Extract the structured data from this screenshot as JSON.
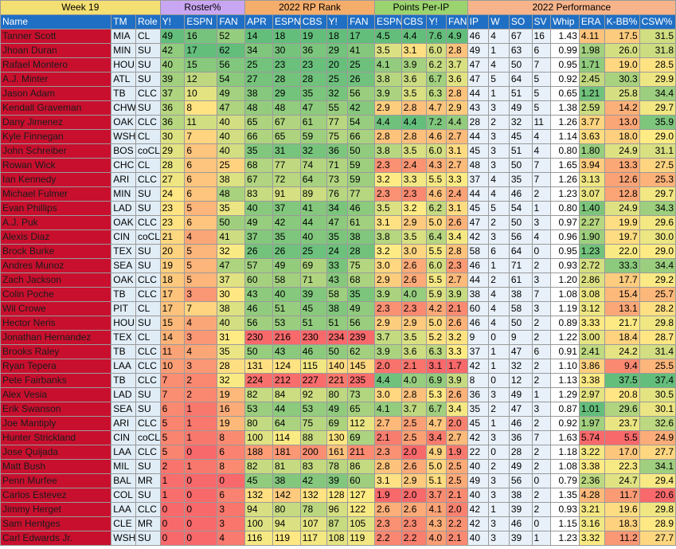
{
  "groups": {
    "week": "Week 19",
    "roster": "Roster%",
    "rp_rank": "2022 RP Rank",
    "points": "Points Per-IP",
    "performance": "2022 Performance"
  },
  "columns": [
    "Name",
    "TM",
    "Role",
    "Y!",
    "ESPN",
    "FAN",
    "APR",
    "ESPN",
    "CBS",
    "Y!",
    "FAN",
    "ESPN",
    "CBS",
    "Y!",
    "FAN",
    "IP",
    "W",
    "SO",
    "SV",
    "Whip",
    "ERA",
    "K-BB%",
    "CSW%"
  ],
  "rows": [
    {
      "name": "Tanner Scott",
      "tm": "MIA",
      "role": "CL",
      "ry": "49",
      "re": "16",
      "rf": "52",
      "apr": "14",
      "ke": "18",
      "kc": "19",
      "ky": "18",
      "kf": "17",
      "pe": "4.5",
      "pc": "4.4",
      "py": "7.6",
      "pf": "4.9",
      "ip": "46",
      "w": "4",
      "so": "67",
      "sv": "16",
      "whip": "1.43",
      "era": "4.11",
      "kbb": "17.5",
      "csw": "31.5"
    },
    {
      "name": "Jhoan Duran",
      "tm": "MIN",
      "role": "SU",
      "ry": "42",
      "re": "17",
      "rf": "62",
      "apr": "34",
      "ke": "30",
      "kc": "36",
      "ky": "29",
      "kf": "41",
      "pe": "3.5",
      "pc": "3.1",
      "py": "6.0",
      "pf": "2.8",
      "ip": "49",
      "w": "1",
      "so": "63",
      "sv": "6",
      "whip": "0.99",
      "era": "1.98",
      "kbb": "26.0",
      "csw": "31.8"
    },
    {
      "name": "Rafael Montero",
      "tm": "HOU",
      "role": "SU",
      "ry": "40",
      "re": "15",
      "rf": "56",
      "apr": "25",
      "ke": "23",
      "kc": "23",
      "ky": "20",
      "kf": "25",
      "pe": "4.1",
      "pc": "3.9",
      "py": "6.2",
      "pf": "3.7",
      "ip": "47",
      "w": "4",
      "so": "50",
      "sv": "7",
      "whip": "0.95",
      "era": "1.71",
      "kbb": "19.0",
      "csw": "28.5"
    },
    {
      "name": "A.J. Minter",
      "tm": "ATL",
      "role": "SU",
      "ry": "39",
      "re": "12",
      "rf": "54",
      "apr": "27",
      "ke": "28",
      "kc": "28",
      "ky": "25",
      "kf": "26",
      "pe": "3.8",
      "pc": "3.6",
      "py": "6.7",
      "pf": "3.6",
      "ip": "47",
      "w": "5",
      "so": "64",
      "sv": "5",
      "whip": "0.92",
      "era": "2.45",
      "kbb": "30.3",
      "csw": "29.9"
    },
    {
      "name": "Jason Adam",
      "tm": "TB",
      "role": "CLC",
      "ry": "37",
      "re": "10",
      "rf": "49",
      "apr": "38",
      "ke": "29",
      "kc": "35",
      "ky": "32",
      "kf": "56",
      "pe": "3.9",
      "pc": "3.5",
      "py": "6.3",
      "pf": "2.8",
      "ip": "44",
      "w": "1",
      "so": "51",
      "sv": "5",
      "whip": "0.65",
      "era": "1.21",
      "kbb": "25.8",
      "csw": "34.4"
    },
    {
      "name": "Kendall Graveman",
      "tm": "CHW",
      "role": "SU",
      "ry": "36",
      "re": "8",
      "rf": "47",
      "apr": "48",
      "ke": "48",
      "kc": "47",
      "ky": "55",
      "kf": "42",
      "pe": "2.9",
      "pc": "2.8",
      "py": "4.7",
      "pf": "2.9",
      "ip": "43",
      "w": "3",
      "so": "49",
      "sv": "5",
      "whip": "1.38",
      "era": "2.59",
      "kbb": "14.2",
      "csw": "29.7"
    },
    {
      "name": "Dany Jimenez",
      "tm": "OAK",
      "role": "CLC",
      "ry": "36",
      "re": "11",
      "rf": "40",
      "apr": "65",
      "ke": "67",
      "kc": "61",
      "ky": "77",
      "kf": "54",
      "pe": "4.4",
      "pc": "4.4",
      "py": "7.2",
      "pf": "4.4",
      "ip": "28",
      "w": "2",
      "so": "32",
      "sv": "11",
      "whip": "1.26",
      "era": "3.77",
      "kbb": "13.0",
      "csw": "35.9"
    },
    {
      "name": "Kyle Finnegan",
      "tm": "WSH",
      "role": "CL",
      "ry": "30",
      "re": "7",
      "rf": "40",
      "apr": "66",
      "ke": "65",
      "kc": "59",
      "ky": "75",
      "kf": "66",
      "pe": "2.8",
      "pc": "2.8",
      "py": "4.6",
      "pf": "2.7",
      "ip": "44",
      "w": "3",
      "so": "45",
      "sv": "4",
      "whip": "1.14",
      "era": "3.63",
      "kbb": "18.0",
      "csw": "29.0"
    },
    {
      "name": "John Schreiber",
      "tm": "BOS",
      "role": "coCL",
      "ry": "29",
      "re": "6",
      "rf": "40",
      "apr": "35",
      "ke": "31",
      "kc": "32",
      "ky": "36",
      "kf": "50",
      "pe": "3.8",
      "pc": "3.5",
      "py": "6.0",
      "pf": "3.1",
      "ip": "45",
      "w": "3",
      "so": "51",
      "sv": "4",
      "whip": "0.80",
      "era": "1.80",
      "kbb": "24.9",
      "csw": "31.1"
    },
    {
      "name": "Rowan Wick",
      "tm": "CHC",
      "role": "CL",
      "ry": "28",
      "re": "6",
      "rf": "25",
      "apr": "68",
      "ke": "77",
      "kc": "74",
      "ky": "71",
      "kf": "59",
      "pe": "2.3",
      "pc": "2.4",
      "py": "4.3",
      "pf": "2.7",
      "ip": "48",
      "w": "3",
      "so": "50",
      "sv": "7",
      "whip": "1.65",
      "era": "3.94",
      "kbb": "13.3",
      "csw": "27.5"
    },
    {
      "name": "Ian Kennedy",
      "tm": "ARI",
      "role": "CLC",
      "ry": "27",
      "re": "6",
      "rf": "38",
      "apr": "67",
      "ke": "72",
      "kc": "64",
      "ky": "73",
      "kf": "59",
      "pe": "3.2",
      "pc": "3.3",
      "py": "5.5",
      "pf": "3.3",
      "ip": "37",
      "w": "4",
      "so": "35",
      "sv": "7",
      "whip": "1.26",
      "era": "3.13",
      "kbb": "12.6",
      "csw": "25.3"
    },
    {
      "name": "Michael Fulmer",
      "tm": "MIN",
      "role": "SU",
      "ry": "24",
      "re": "6",
      "rf": "48",
      "apr": "83",
      "ke": "91",
      "kc": "89",
      "ky": "76",
      "kf": "77",
      "pe": "2.3",
      "pc": "2.3",
      "py": "4.6",
      "pf": "2.4",
      "ip": "44",
      "w": "4",
      "so": "46",
      "sv": "2",
      "whip": "1.23",
      "era": "3.07",
      "kbb": "12.8",
      "csw": "29.7"
    },
    {
      "name": "Evan Phillips",
      "tm": "LAD",
      "role": "SU",
      "ry": "23",
      "re": "5",
      "rf": "35",
      "apr": "40",
      "ke": "37",
      "kc": "41",
      "ky": "34",
      "kf": "46",
      "pe": "3.5",
      "pc": "3.2",
      "py": "6.2",
      "pf": "3.1",
      "ip": "45",
      "w": "5",
      "so": "54",
      "sv": "1",
      "whip": "0.80",
      "era": "1.40",
      "kbb": "24.9",
      "csw": "34.3"
    },
    {
      "name": "A.J. Puk",
      "tm": "OAK",
      "role": "CLC",
      "ry": "23",
      "re": "6",
      "rf": "50",
      "apr": "49",
      "ke": "42",
      "kc": "44",
      "ky": "47",
      "kf": "61",
      "pe": "3.1",
      "pc": "2.9",
      "py": "5.0",
      "pf": "2.6",
      "ip": "47",
      "w": "2",
      "so": "50",
      "sv": "3",
      "whip": "0.97",
      "era": "2.27",
      "kbb": "19.9",
      "csw": "29.6"
    },
    {
      "name": "Alexis Diaz",
      "tm": "CIN",
      "role": "coCL",
      "ry": "21",
      "re": "4",
      "rf": "41",
      "apr": "37",
      "ke": "35",
      "kc": "40",
      "ky": "35",
      "kf": "38",
      "pe": "3.8",
      "pc": "3.5",
      "py": "6.4",
      "pf": "3.4",
      "ip": "42",
      "w": "3",
      "so": "56",
      "sv": "4",
      "whip": "0.96",
      "era": "1.90",
      "kbb": "19.7",
      "csw": "30.0"
    },
    {
      "name": "Brock Burke",
      "tm": "TEX",
      "role": "SU",
      "ry": "20",
      "re": "5",
      "rf": "32",
      "apr": "26",
      "ke": "26",
      "kc": "25",
      "ky": "24",
      "kf": "28",
      "pe": "3.2",
      "pc": "3.0",
      "py": "5.5",
      "pf": "2.8",
      "ip": "58",
      "w": "6",
      "so": "64",
      "sv": "0",
      "whip": "0.95",
      "era": "1.23",
      "kbb": "22.0",
      "csw": "29.0"
    },
    {
      "name": "Andres Munoz",
      "tm": "SEA",
      "role": "SU",
      "ry": "19",
      "re": "5",
      "rf": "47",
      "apr": "57",
      "ke": "49",
      "kc": "69",
      "ky": "33",
      "kf": "75",
      "pe": "3.0",
      "pc": "2.6",
      "py": "6.0",
      "pf": "2.3",
      "ip": "46",
      "w": "1",
      "so": "71",
      "sv": "2",
      "whip": "0.93",
      "era": "2.72",
      "kbb": "33.3",
      "csw": "34.4"
    },
    {
      "name": "Zach Jackson",
      "tm": "OAK",
      "role": "CLC",
      "ry": "18",
      "re": "5",
      "rf": "37",
      "apr": "60",
      "ke": "58",
      "kc": "71",
      "ky": "43",
      "kf": "68",
      "pe": "2.9",
      "pc": "2.6",
      "py": "5.5",
      "pf": "2.7",
      "ip": "44",
      "w": "2",
      "so": "61",
      "sv": "3",
      "whip": "1.20",
      "era": "2.86",
      "kbb": "17.7",
      "csw": "29.2"
    },
    {
      "name": "Colin Poche",
      "tm": "TB",
      "role": "CLC",
      "ry": "17",
      "re": "3",
      "rf": "30",
      "apr": "43",
      "ke": "40",
      "kc": "39",
      "ky": "58",
      "kf": "35",
      "pe": "3.9",
      "pc": "4.0",
      "py": "5.9",
      "pf": "3.9",
      "ip": "38",
      "w": "4",
      "so": "38",
      "sv": "7",
      "whip": "1.08",
      "era": "3.08",
      "kbb": "15.4",
      "csw": "25.7"
    },
    {
      "name": "Wil Crowe",
      "tm": "PIT",
      "role": "CL",
      "ry": "17",
      "re": "7",
      "rf": "38",
      "apr": "46",
      "ke": "51",
      "kc": "45",
      "ky": "38",
      "kf": "49",
      "pe": "2.3",
      "pc": "2.3",
      "py": "4.2",
      "pf": "2.1",
      "ip": "60",
      "w": "4",
      "so": "58",
      "sv": "3",
      "whip": "1.19",
      "era": "3.12",
      "kbb": "13.1",
      "csw": "28.2"
    },
    {
      "name": "Hector Neris",
      "tm": "HOU",
      "role": "SU",
      "ry": "15",
      "re": "4",
      "rf": "40",
      "apr": "56",
      "ke": "53",
      "kc": "51",
      "ky": "51",
      "kf": "56",
      "pe": "2.9",
      "pc": "2.9",
      "py": "5.0",
      "pf": "2.6",
      "ip": "46",
      "w": "4",
      "so": "50",
      "sv": "2",
      "whip": "0.89",
      "era": "3.33",
      "kbb": "21.7",
      "csw": "29.8"
    },
    {
      "name": "Jonathan Hernandez",
      "tm": "TEX",
      "role": "CL",
      "ry": "14",
      "re": "3",
      "rf": "31",
      "apr": "230",
      "ke": "216",
      "kc": "230",
      "ky": "234",
      "kf": "239",
      "pe": "3.7",
      "pc": "3.5",
      "py": "5.2",
      "pf": "3.2",
      "ip": "9",
      "w": "0",
      "so": "9",
      "sv": "2",
      "whip": "1.22",
      "era": "3.00",
      "kbb": "18.4",
      "csw": "28.7"
    },
    {
      "name": "Brooks Raley",
      "tm": "TB",
      "role": "CLC",
      "ry": "11",
      "re": "4",
      "rf": "35",
      "apr": "50",
      "ke": "43",
      "kc": "46",
      "ky": "50",
      "kf": "62",
      "pe": "3.9",
      "pc": "3.6",
      "py": "6.3",
      "pf": "3.3",
      "ip": "37",
      "w": "1",
      "so": "47",
      "sv": "6",
      "whip": "0.91",
      "era": "2.41",
      "kbb": "24.2",
      "csw": "31.4"
    },
    {
      "name": "Ryan Tepera",
      "tm": "LAA",
      "role": "CLC",
      "ry": "10",
      "re": "3",
      "rf": "28",
      "apr": "131",
      "ke": "124",
      "kc": "115",
      "ky": "140",
      "kf": "145",
      "pe": "2.0",
      "pc": "2.1",
      "py": "3.1",
      "pf": "1.7",
      "ip": "42",
      "w": "1",
      "so": "32",
      "sv": "2",
      "whip": "1.10",
      "era": "3.86",
      "kbb": "9.4",
      "csw": "25.5"
    },
    {
      "name": "Pete Fairbanks",
      "tm": "TB",
      "role": "CLC",
      "ry": "7",
      "re": "2",
      "rf": "32",
      "apr": "224",
      "ke": "212",
      "kc": "227",
      "ky": "221",
      "kf": "235",
      "pe": "4.4",
      "pc": "4.0",
      "py": "6.9",
      "pf": "3.9",
      "ip": "8",
      "w": "0",
      "so": "12",
      "sv": "2",
      "whip": "1.13",
      "era": "3.38",
      "kbb": "37.5",
      "csw": "37.4"
    },
    {
      "name": "Alex Vesia",
      "tm": "LAD",
      "role": "SU",
      "ry": "7",
      "re": "2",
      "rf": "19",
      "apr": "82",
      "ke": "84",
      "kc": "92",
      "ky": "80",
      "kf": "73",
      "pe": "3.0",
      "pc": "2.8",
      "py": "5.3",
      "pf": "2.6",
      "ip": "36",
      "w": "3",
      "so": "49",
      "sv": "1",
      "whip": "1.29",
      "era": "2.97",
      "kbb": "20.8",
      "csw": "30.5"
    },
    {
      "name": "Erik Swanson",
      "tm": "SEA",
      "role": "SU",
      "ry": "6",
      "re": "1",
      "rf": "16",
      "apr": "53",
      "ke": "44",
      "kc": "53",
      "ky": "49",
      "kf": "65",
      "pe": "4.1",
      "pc": "3.7",
      "py": "6.7",
      "pf": "3.4",
      "ip": "35",
      "w": "2",
      "so": "47",
      "sv": "3",
      "whip": "0.87",
      "era": "1.01",
      "kbb": "29.6",
      "csw": "30.1"
    },
    {
      "name": "Joe Mantiply",
      "tm": "ARI",
      "role": "CLC",
      "ry": "5",
      "re": "1",
      "rf": "19",
      "apr": "80",
      "ke": "64",
      "kc": "75",
      "ky": "69",
      "kf": "112",
      "pe": "2.7",
      "pc": "2.5",
      "py": "4.7",
      "pf": "2.0",
      "ip": "45",
      "w": "1",
      "so": "46",
      "sv": "2",
      "whip": "0.92",
      "era": "1.97",
      "kbb": "23.7",
      "csw": "32.6"
    },
    {
      "name": "Hunter Strickland",
      "tm": "CIN",
      "role": "coCL",
      "ry": "5",
      "re": "1",
      "rf": "8",
      "apr": "100",
      "ke": "114",
      "kc": "88",
      "ky": "130",
      "kf": "69",
      "pe": "2.1",
      "pc": "2.5",
      "py": "3.4",
      "pf": "2.7",
      "ip": "42",
      "w": "3",
      "so": "36",
      "sv": "7",
      "whip": "1.63",
      "era": "5.74",
      "kbb": "5.5",
      "csw": "24.9"
    },
    {
      "name": "Jose Quijada",
      "tm": "LAA",
      "role": "CLC",
      "ry": "5",
      "re": "0",
      "rf": "6",
      "apr": "188",
      "ke": "181",
      "kc": "200",
      "ky": "161",
      "kf": "211",
      "pe": "2.3",
      "pc": "2.0",
      "py": "4.9",
      "pf": "1.9",
      "ip": "22",
      "w": "0",
      "so": "28",
      "sv": "2",
      "whip": "1.18",
      "era": "3.22",
      "kbb": "17.0",
      "csw": "27.7"
    },
    {
      "name": "Matt Bush",
      "tm": "MIL",
      "role": "SU",
      "ry": "2",
      "re": "1",
      "rf": "8",
      "apr": "82",
      "ke": "81",
      "kc": "83",
      "ky": "78",
      "kf": "86",
      "pe": "2.8",
      "pc": "2.6",
      "py": "5.0",
      "pf": "2.5",
      "ip": "40",
      "w": "2",
      "so": "49",
      "sv": "2",
      "whip": "1.08",
      "era": "3.38",
      "kbb": "22.3",
      "csw": "34.1"
    },
    {
      "name": "Penn Murfee",
      "tm": "BAL",
      "role": "MR",
      "ry": "1",
      "re": "0",
      "rf": "0",
      "apr": "45",
      "ke": "38",
      "kc": "42",
      "ky": "39",
      "kf": "60",
      "pe": "3.1",
      "pc": "2.9",
      "py": "5.1",
      "pf": "2.5",
      "ip": "49",
      "w": "3",
      "so": "56",
      "sv": "0",
      "whip": "0.79",
      "era": "2.36",
      "kbb": "24.7",
      "csw": "29.4"
    },
    {
      "name": "Carlos Estevez",
      "tm": "COL",
      "role": "SU",
      "ry": "1",
      "re": "0",
      "rf": "6",
      "apr": "132",
      "ke": "142",
      "kc": "132",
      "ky": "128",
      "kf": "127",
      "pe": "1.9",
      "pc": "2.0",
      "py": "3.7",
      "pf": "2.1",
      "ip": "40",
      "w": "3",
      "so": "38",
      "sv": "2",
      "whip": "1.35",
      "era": "4.28",
      "kbb": "11.7",
      "csw": "20.6"
    },
    {
      "name": "Jimmy Herget",
      "tm": "LAA",
      "role": "CLC",
      "ry": "0",
      "re": "0",
      "rf": "3",
      "apr": "94",
      "ke": "80",
      "kc": "78",
      "ky": "96",
      "kf": "122",
      "pe": "2.6",
      "pc": "2.6",
      "py": "4.1",
      "pf": "2.0",
      "ip": "42",
      "w": "1",
      "so": "39",
      "sv": "2",
      "whip": "0.93",
      "era": "3.21",
      "kbb": "19.6",
      "csw": "29.8"
    },
    {
      "name": "Sam Hentges",
      "tm": "CLE",
      "role": "MR",
      "ry": "0",
      "re": "0",
      "rf": "3",
      "apr": "100",
      "ke": "94",
      "kc": "107",
      "ky": "87",
      "kf": "105",
      "pe": "2.3",
      "pc": "2.3",
      "py": "4.3",
      "pf": "2.2",
      "ip": "42",
      "w": "3",
      "so": "46",
      "sv": "0",
      "whip": "1.15",
      "era": "3.16",
      "kbb": "18.3",
      "csw": "28.9"
    },
    {
      "name": "Carl Edwards Jr.",
      "tm": "WSH",
      "role": "SU",
      "ry": "0",
      "re": "0",
      "rf": "4",
      "apr": "116",
      "ke": "119",
      "kc": "117",
      "ky": "108",
      "kf": "119",
      "pe": "2.2",
      "pc": "2.2",
      "py": "4.0",
      "pf": "2.1",
      "ip": "40",
      "w": "3",
      "so": "39",
      "sv": "1",
      "whip": "1.23",
      "era": "3.32",
      "kbb": "11.2",
      "csw": "27.7"
    }
  ]
}
